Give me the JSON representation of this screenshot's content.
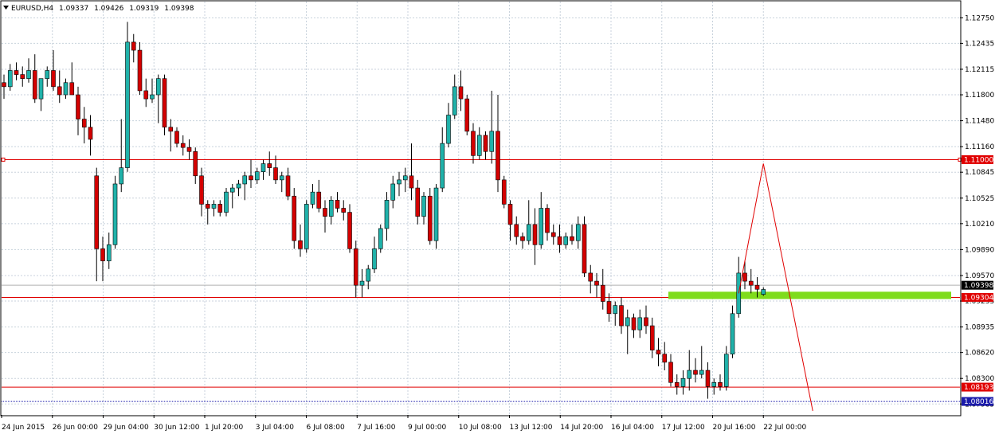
{
  "header": {
    "symbol": "EURUSD,H4",
    "open": "1.09337",
    "high": "1.09426",
    "low": "1.09319",
    "close": "1.09398"
  },
  "chart_data": {
    "type": "candlestick",
    "symbol": "EURUSD",
    "timeframe": "H4",
    "grid": true,
    "ylim": [
      1.0785,
      1.1295
    ],
    "y_ticks": [
      "1.12750",
      "1.12435",
      "1.12115",
      "1.11800",
      "1.11480",
      "1.11160",
      "1.10845",
      "1.10525",
      "1.10210",
      "1.09890",
      "1.09570",
      "1.09255",
      "1.08935",
      "1.08620",
      "1.08300",
      "1.07985"
    ],
    "x_ticks": [
      "24 Jun 2015",
      "26 Jun 00:00",
      "29 Jun 04:00",
      "30 Jun 12:00",
      "1 Jul 20:00",
      "3 Jul 04:00",
      "6 Jul 08:00",
      "7 Jul 16:00",
      "9 Jul 00:00",
      "10 Jul 08:00",
      "13 Jul 12:00",
      "14 Jul 20:00",
      "16 Jul 04:00",
      "17 Jul 12:00",
      "20 Jul 16:00",
      "22 Jul 00:00"
    ],
    "candles": [
      [
        1.1195,
        1.1205,
        1.1175,
        1.119
      ],
      [
        1.119,
        1.1218,
        1.1185,
        1.121
      ],
      [
        1.121,
        1.122,
        1.1198,
        1.1205
      ],
      [
        1.1205,
        1.1215,
        1.119,
        1.12
      ],
      [
        1.12,
        1.1225,
        1.1195,
        1.121
      ],
      [
        1.121,
        1.123,
        1.117,
        1.1175
      ],
      [
        1.1175,
        1.12,
        1.116,
        1.12
      ],
      [
        1.12,
        1.1215,
        1.119,
        1.121
      ],
      [
        1.121,
        1.1235,
        1.1185,
        1.119
      ],
      [
        1.119,
        1.121,
        1.117,
        1.118
      ],
      [
        1.118,
        1.12,
        1.1175,
        1.1195
      ],
      [
        1.1195,
        1.122,
        1.1185,
        1.118
      ],
      [
        1.118,
        1.119,
        1.113,
        1.115
      ],
      [
        1.115,
        1.1165,
        1.112,
        1.114
      ],
      [
        1.114,
        1.1155,
        1.1105,
        1.1125
      ],
      [
        1.108,
        1.109,
        1.095,
        1.099
      ],
      [
        1.099,
        1.1005,
        1.095,
        1.0975
      ],
      [
        1.0975,
        1.101,
        1.0965,
        1.0995
      ],
      [
        1.0995,
        1.108,
        1.099,
        1.107
      ],
      [
        1.107,
        1.115,
        1.106,
        1.109
      ],
      [
        1.109,
        1.127,
        1.1085,
        1.1245
      ],
      [
        1.1245,
        1.1255,
        1.122,
        1.1235
      ],
      [
        1.1235,
        1.1245,
        1.118,
        1.1185
      ],
      [
        1.1185,
        1.12,
        1.1165,
        1.1175
      ],
      [
        1.1175,
        1.12,
        1.117,
        1.118
      ],
      [
        1.118,
        1.1205,
        1.1145,
        1.12
      ],
      [
        1.12,
        1.1205,
        1.113,
        1.114
      ],
      [
        1.114,
        1.115,
        1.111,
        1.1135
      ],
      [
        1.1135,
        1.114,
        1.1115,
        1.112
      ],
      [
        1.112,
        1.113,
        1.1105,
        1.1115
      ],
      [
        1.1115,
        1.1125,
        1.11,
        1.111
      ],
      [
        1.111,
        1.1115,
        1.107,
        1.108
      ],
      [
        1.108,
        1.109,
        1.103,
        1.1045
      ],
      [
        1.1045,
        1.105,
        1.102,
        1.104
      ],
      [
        1.104,
        1.105,
        1.103,
        1.1045
      ],
      [
        1.1045,
        1.105,
        1.103,
        1.1035
      ],
      [
        1.1035,
        1.1065,
        1.103,
        1.106
      ],
      [
        1.106,
        1.107,
        1.104,
        1.1065
      ],
      [
        1.1065,
        1.1075,
        1.1055,
        1.107
      ],
      [
        1.107,
        1.1085,
        1.105,
        1.108
      ],
      [
        1.108,
        1.11,
        1.1065,
        1.1075
      ],
      [
        1.1075,
        1.109,
        1.107,
        1.1085
      ],
      [
        1.1085,
        1.11,
        1.1075,
        1.1095
      ],
      [
        1.1095,
        1.111,
        1.108,
        1.109
      ],
      [
        1.109,
        1.1105,
        1.107,
        1.1075
      ],
      [
        1.1075,
        1.1085,
        1.106,
        1.108
      ],
      [
        1.108,
        1.109,
        1.105,
        1.1055
      ],
      [
        1.1055,
        1.1065,
        1.099,
        1.1
      ],
      [
        1.1,
        1.102,
        1.098,
        1.099
      ],
      [
        1.099,
        1.105,
        1.0985,
        1.1045
      ],
      [
        1.1045,
        1.107,
        1.104,
        1.106
      ],
      [
        1.106,
        1.1075,
        1.1035,
        1.104
      ],
      [
        1.104,
        1.105,
        1.101,
        1.103
      ],
      [
        1.103,
        1.1055,
        1.102,
        1.105
      ],
      [
        1.105,
        1.106,
        1.1035,
        1.104
      ],
      [
        1.104,
        1.105,
        1.1025,
        1.1035
      ],
      [
        1.1035,
        1.1045,
        1.0985,
        1.099
      ],
      [
        1.099,
        1.1,
        1.093,
        1.0945
      ],
      [
        1.0945,
        1.0965,
        1.093,
        1.095
      ],
      [
        1.095,
        1.097,
        1.094,
        1.0965
      ],
      [
        1.0965,
        1.1005,
        1.096,
        1.099
      ],
      [
        1.099,
        1.102,
        1.0985,
        1.1015
      ],
      [
        1.1015,
        1.106,
        1.1,
        1.105
      ],
      [
        1.105,
        1.108,
        1.104,
        1.107
      ],
      [
        1.107,
        1.1085,
        1.1055,
        1.1075
      ],
      [
        1.1075,
        1.109,
        1.106,
        1.108
      ],
      [
        1.108,
        1.112,
        1.105,
        1.1065
      ],
      [
        1.1065,
        1.1075,
        1.102,
        1.103
      ],
      [
        1.103,
        1.106,
        1.102,
        1.1055
      ],
      [
        1.1055,
        1.1065,
        1.0995,
        1.1
      ],
      [
        1.1,
        1.107,
        1.099,
        1.1065
      ],
      [
        1.1065,
        1.114,
        1.106,
        1.112
      ],
      [
        1.112,
        1.117,
        1.1115,
        1.1155
      ],
      [
        1.1155,
        1.1205,
        1.115,
        1.119
      ],
      [
        1.119,
        1.121,
        1.116,
        1.1175
      ],
      [
        1.1175,
        1.118,
        1.113,
        1.1135
      ],
      [
        1.1135,
        1.1145,
        1.1095,
        1.1105
      ],
      [
        1.1105,
        1.114,
        1.11,
        1.113
      ],
      [
        1.113,
        1.1135,
        1.11,
        1.111
      ],
      [
        1.111,
        1.1185,
        1.1095,
        1.1135
      ],
      [
        1.1135,
        1.118,
        1.106,
        1.1075
      ],
      [
        1.1075,
        1.108,
        1.104,
        1.1045
      ],
      [
        1.1045,
        1.105,
        1.1,
        1.102
      ],
      [
        1.102,
        1.103,
        1.0995,
        1.1005
      ],
      [
        1.1005,
        1.101,
        1.099,
        1.1
      ],
      [
        1.1,
        1.105,
        1.0995,
        1.102
      ],
      [
        1.102,
        1.104,
        1.097,
        1.0995
      ],
      [
        1.0995,
        1.106,
        1.099,
        1.104
      ],
      [
        1.104,
        1.1045,
        1.1,
        1.101
      ],
      [
        1.101,
        1.102,
        1.0995,
        1.1005
      ],
      [
        1.1005,
        1.102,
        1.0985,
        1.0995
      ],
      [
        1.0995,
        1.101,
        1.099,
        1.1005
      ],
      [
        1.1005,
        1.102,
        1.0995,
        1.1
      ],
      [
        1.1,
        1.103,
        1.099,
        1.102
      ],
      [
        1.102,
        1.103,
        1.0955,
        1.096
      ],
      [
        1.096,
        1.097,
        1.0935,
        1.095
      ],
      [
        1.095,
        1.096,
        1.093,
        1.0945
      ],
      [
        1.0945,
        1.0965,
        1.0915,
        1.0925
      ],
      [
        1.0925,
        1.0935,
        1.09,
        1.091
      ],
      [
        1.091,
        1.0925,
        1.0895,
        1.092
      ],
      [
        1.092,
        1.093,
        1.0885,
        1.0895
      ],
      [
        1.0895,
        1.0915,
        1.086,
        1.0905
      ],
      [
        1.0905,
        1.091,
        1.088,
        1.089
      ],
      [
        1.089,
        1.0915,
        1.088,
        1.0905
      ],
      [
        1.0905,
        1.092,
        1.0885,
        1.0895
      ],
      [
        1.0895,
        1.0905,
        1.0855,
        1.0865
      ],
      [
        1.0865,
        1.088,
        1.0845,
        1.086
      ],
      [
        1.086,
        1.0875,
        1.084,
        1.085
      ],
      [
        1.085,
        1.086,
        1.082,
        1.0825
      ],
      [
        1.0825,
        1.0835,
        1.081,
        1.082
      ],
      [
        1.082,
        1.084,
        1.081,
        1.083
      ],
      [
        1.083,
        1.0865,
        1.0815,
        1.084
      ],
      [
        1.084,
        1.0855,
        1.0825,
        1.0835
      ],
      [
        1.0835,
        1.087,
        1.083,
        1.084
      ],
      [
        1.084,
        1.085,
        1.0805,
        1.082
      ],
      [
        1.082,
        1.083,
        1.081,
        1.0825
      ],
      [
        1.0825,
        1.0835,
        1.0815,
        1.082
      ],
      [
        1.082,
        1.087,
        1.0815,
        1.086
      ],
      [
        1.086,
        1.092,
        1.0855,
        1.091
      ],
      [
        1.091,
        1.098,
        1.0905,
        1.096
      ],
      [
        1.096,
        1.0975,
        1.094,
        1.095
      ],
      [
        1.095,
        1.0965,
        1.0935,
        1.0945
      ],
      [
        1.0945,
        1.0955,
        1.093,
        1.094
      ],
      [
        1.09337,
        1.09426,
        1.09319,
        1.09398
      ]
    ],
    "price_labels": [
      {
        "price": 1.11,
        "label": "1.11000",
        "bg": "#e00000",
        "fg": "#ffffff"
      },
      {
        "price": 1.0945,
        "label": "1.09398",
        "bg": "#000000",
        "fg": "#ffffff"
      },
      {
        "price": 1.093,
        "label": "1.09304",
        "bg": "#e00000",
        "fg": "#ffffff"
      },
      {
        "price": 1.08193,
        "label": "1.08193",
        "bg": "#e00000",
        "fg": "#ffffff"
      },
      {
        "price": 1.08016,
        "label": "1.08016",
        "bg": "#1a1aaa",
        "fg": "#ffffff"
      }
    ],
    "colors": {
      "bull_body": "#20b2aa",
      "bear_body": "#d40000",
      "wick": "#000000",
      "hline": "#e00000",
      "zone": "#7fdc1c",
      "projection": "#e00000",
      "grid": "#c8d2dc"
    },
    "zone": {
      "start_index": 108,
      "top": 1.0937,
      "bottom": 1.0928
    },
    "projection": [
      {
        "index": 119,
        "price": 1.0935
      },
      {
        "index": 123,
        "price": 1.1095
      },
      {
        "index": 131,
        "price": 1.079
      }
    ]
  }
}
